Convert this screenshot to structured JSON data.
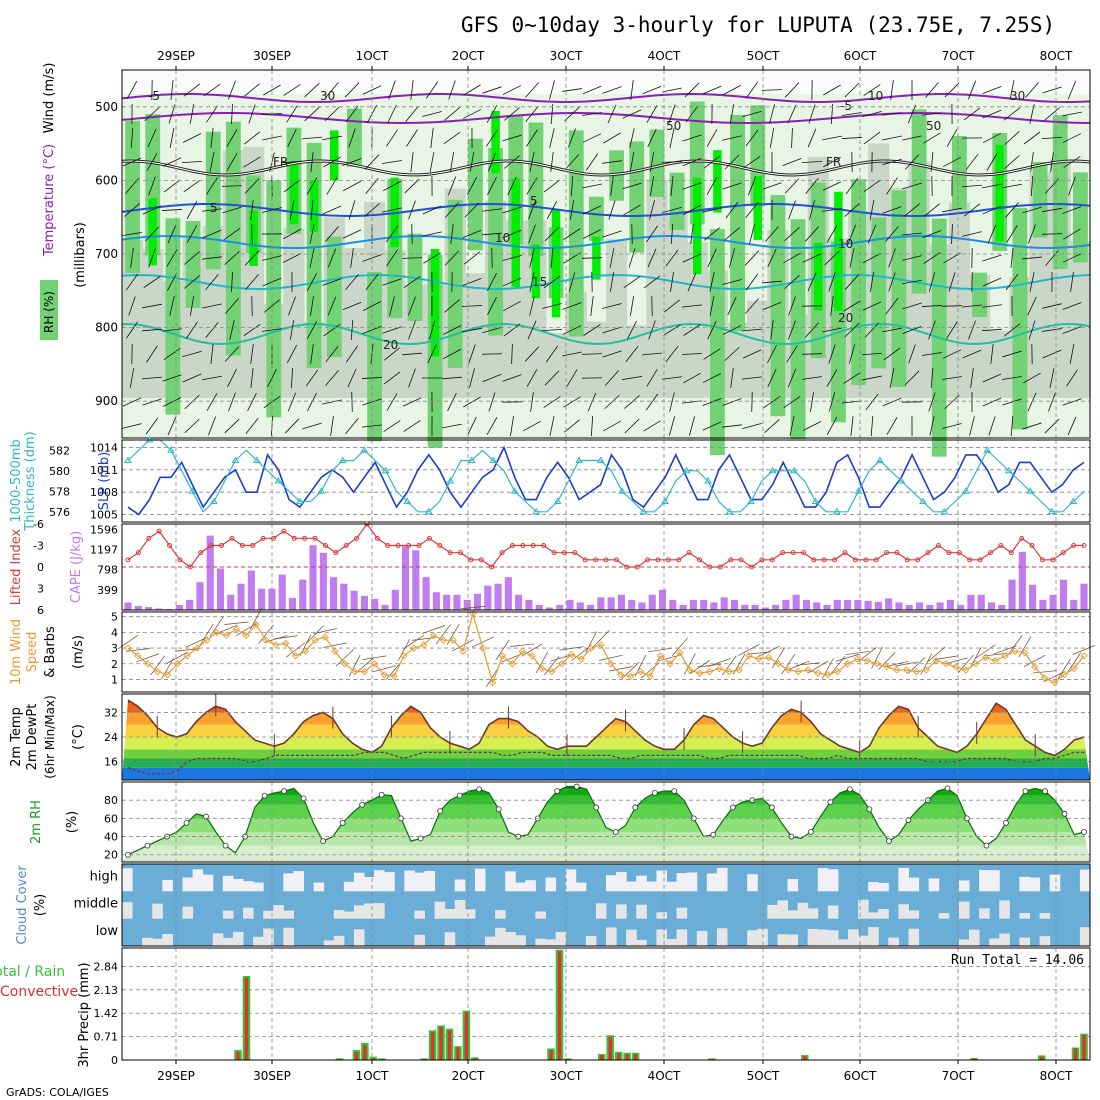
{
  "title": "GFS 0~10day 3-hourly for LUPUTA (23.75E, 7.25S)",
  "footer": "GrADS: COLA/IGES",
  "dates": [
    "29SEP",
    "30SEP",
    "1OCT",
    "2OCT",
    "3OCT",
    "4OCT",
    "5OCT",
    "6OCT",
    "7OCT",
    "8OCT"
  ],
  "colors": {
    "rh_light": "#e8f4e4",
    "rh_mid": "#c9d6c8",
    "rh_green": "#73d273",
    "rh_bright": "#00ee00",
    "rh_dark": "#2eb82e",
    "freezing": "#222222",
    "temp_neg": "#8a1fb5",
    "temp_5": "#1e50d8",
    "temp_10": "#1e90e0",
    "temp_15": "#20b8c8",
    "temp_20": "#20c0a0",
    "warm": "#e8a030",
    "slp": "#1a3ccf",
    "thickness": "#30b8c8",
    "lifted": "#d83c3c",
    "cape": "#c07cf0",
    "wind10": "#e89c30",
    "precip_total": "#38c038",
    "precip_conv": "#e03030",
    "cloud": "#6aaed8",
    "cloud_gap": "#e6e6e6"
  },
  "chart_data": [
    {
      "type": "heatmap",
      "name": "upper-air",
      "ylabel": "(millibars)",
      "legend": [
        "RH (%)",
        "Temperature (°C)",
        "Wind (m/s)"
      ],
      "y_ticks": [
        500,
        600,
        700,
        800,
        900
      ],
      "ylim": [
        950,
        450
      ],
      "contour_labels": [
        "-5",
        "-5",
        "FR",
        "FR",
        "5",
        "5",
        "10",
        "10",
        "15",
        "20",
        "20",
        "30",
        "30",
        "50",
        "50",
        "10"
      ]
    },
    {
      "type": "line",
      "name": "thickness-slp",
      "ylabel_left": "1000-500mb Thickness (dm)",
      "ylabel_right": "SLP (mb)",
      "left_ticks": [
        576,
        578,
        580,
        582
      ],
      "right_ticks": [
        1005,
        1008,
        1011,
        1014
      ],
      "left_lim": [
        575,
        583
      ],
      "right_lim": [
        1004,
        1015
      ],
      "series": [
        {
          "name": "SLP",
          "values": [
            1006,
            1005,
            1007,
            1010,
            1010,
            1012,
            1009,
            1006,
            1008,
            1010,
            1011,
            1008,
            1008,
            1013,
            1011,
            1007,
            1006,
            1008,
            1010,
            1011,
            1010,
            1008,
            1010,
            1012,
            1009,
            1006,
            1008,
            1011,
            1013,
            1011,
            1008,
            1006,
            1008,
            1010,
            1011,
            1014,
            1010,
            1007,
            1007,
            1010,
            1012,
            1010,
            1007,
            1008,
            1009,
            1013,
            1011,
            1007,
            1006,
            1008,
            1010,
            1013,
            1010,
            1007,
            1007,
            1011,
            1013,
            1010,
            1007,
            1007,
            1009,
            1012,
            1009,
            1006,
            1006,
            1008,
            1012,
            1013,
            1010,
            1006,
            1006,
            1008,
            1010,
            1013,
            1010,
            1007,
            1008,
            1010,
            1013,
            1013,
            1011,
            1008,
            1009,
            1012,
            1012,
            1010,
            1008,
            1009,
            1011,
            1012
          ]
        },
        {
          "name": "Thickness",
          "values": [
            581,
            582,
            583,
            583,
            582,
            580,
            578,
            576,
            577,
            579,
            581,
            582,
            581,
            580,
            579,
            578,
            577,
            577,
            578,
            580,
            581,
            581,
            582,
            581,
            580,
            578,
            577,
            576,
            576,
            577,
            579,
            581,
            581,
            582,
            581,
            580,
            578,
            577,
            576,
            576,
            577,
            579,
            581,
            581,
            581,
            580,
            578,
            577,
            576,
            576,
            577,
            579,
            580,
            580,
            579,
            577,
            576,
            576,
            577,
            579,
            580,
            580,
            580,
            579,
            577,
            576,
            576,
            576,
            578,
            580,
            581,
            580,
            579,
            578,
            577,
            576,
            576,
            577,
            578,
            580,
            582,
            581,
            580,
            579,
            578,
            577,
            576,
            576,
            577,
            578
          ]
        }
      ]
    },
    {
      "type": "bar",
      "name": "lifted-cape",
      "ylabel_left": "Lifted Index",
      "ylabel_right": "CAPE (J/kg)",
      "left_ticks": [
        -6,
        -3,
        0,
        3,
        6
      ],
      "left_tick_labels": [
        "6",
        "3",
        "0",
        "-3",
        "-6"
      ],
      "right_ticks": [
        399,
        798,
        1197,
        1596
      ],
      "cape": [
        150,
        80,
        60,
        30,
        20,
        100,
        200,
        550,
        1470,
        820,
        300,
        520,
        780,
        420,
        420,
        700,
        240,
        600,
        1280,
        1130,
        650,
        520,
        380,
        280,
        220,
        100,
        400,
        1260,
        1180,
        650,
        350,
        300,
        300,
        200,
        320,
        480,
        520,
        650,
        300,
        200,
        100,
        50,
        100,
        200,
        150,
        100,
        250,
        250,
        300,
        200,
        150,
        300,
        400,
        200,
        100,
        200,
        200,
        150,
        250,
        200,
        100,
        100,
        50,
        100,
        200,
        300,
        200,
        150,
        100,
        200,
        200,
        200,
        180,
        160,
        230,
        150,
        100,
        150,
        100,
        150,
        200,
        100,
        300,
        300,
        150,
        100,
        600,
        1150,
        500,
        200,
        300,
        600,
        200,
        520
      ],
      "lifted_index": [
        -1,
        -2,
        -4,
        -5,
        -3,
        -1,
        0,
        -2,
        -3,
        -3,
        -4,
        -3,
        -3,
        -4,
        -4,
        -5,
        -4,
        -4,
        -4,
        -3,
        -2,
        -3,
        -4,
        -6,
        -4,
        -3,
        -3,
        -3,
        -3,
        -4,
        -3,
        -2,
        -2,
        -1,
        -1,
        0,
        -2,
        -3,
        -3,
        -3,
        -3,
        -2,
        -2,
        -2,
        -1,
        -1,
        -1,
        -1,
        0,
        0,
        -1,
        -1,
        -1,
        -1,
        -2,
        -1,
        0,
        0,
        -1,
        -1,
        0,
        -1,
        -1,
        -2,
        -2,
        -2,
        -1,
        -1,
        -1,
        -2,
        -1,
        -1,
        -1,
        -2,
        -2,
        -1,
        -1,
        -2,
        -3,
        -2,
        -2,
        -1,
        -1,
        -2,
        -3,
        -2,
        -4,
        -3,
        -1,
        -1,
        -2,
        -3,
        -3
      ]
    },
    {
      "type": "line",
      "name": "wind10m",
      "ylabel": "10m Wind Speed & Barbs (m/s)",
      "y_ticks": [
        1,
        2,
        3,
        4,
        5
      ],
      "ylim": [
        0.2,
        5.3
      ],
      "values": [
        3,
        2.5,
        2,
        1.5,
        1.3,
        2,
        2.5,
        3,
        3.5,
        4,
        3.8,
        4.2,
        3.8,
        4.5,
        3.5,
        3.2,
        3.3,
        2.5,
        2.8,
        3.5,
        3.7,
        2.8,
        2,
        1.5,
        1.5,
        2,
        1.3,
        1.2,
        2.5,
        3,
        3.2,
        3.8,
        3.5,
        3.5,
        2.8,
        5.2,
        3,
        0.8,
        2.5,
        2,
        2.8,
        2.5,
        1.7,
        1.5,
        2,
        2.6,
        2.3,
        3,
        3.2,
        2,
        1.3,
        1.2,
        1.5,
        1.2,
        2.5,
        2,
        2.7,
        1.6,
        1.4,
        1.5,
        1.7,
        1.5,
        1.6,
        2.5,
        2.3,
        2.4,
        2,
        1.6,
        1.5,
        1.6,
        1.4,
        1.3,
        1.5,
        2,
        2.3,
        2.2,
        2,
        1.8,
        1.6,
        1.6,
        1.5,
        1.6,
        2.2,
        2,
        1.8,
        1.6,
        2,
        2.4,
        2.2,
        2.5,
        2.8,
        2.7,
        1.8,
        1.1,
        0.8,
        1.3,
        1.7,
        2.5
      ]
    },
    {
      "type": "area",
      "name": "temperature",
      "ylabel": "2m Temp 2m DewPt (6hr Min/Max) (°C)",
      "y_ticks": [
        16,
        24,
        32
      ],
      "ylim": [
        10,
        38
      ],
      "temp": [
        36,
        34,
        31,
        27,
        25,
        24,
        25,
        29,
        32,
        34,
        33,
        29,
        26,
        23,
        22,
        21,
        22,
        25,
        29,
        31,
        32,
        30,
        25,
        22,
        20,
        19,
        21,
        27,
        31,
        34,
        32,
        27,
        24,
        22,
        21,
        20,
        22,
        28,
        30,
        30,
        29,
        26,
        24,
        21,
        20,
        21,
        21,
        21,
        24,
        27,
        30,
        29,
        26,
        23,
        21,
        20,
        20,
        23,
        28,
        31,
        30,
        27,
        24,
        22,
        21,
        22,
        27,
        31,
        33,
        32,
        29,
        25,
        23,
        21,
        20,
        19,
        21,
        27,
        31,
        34,
        33,
        27,
        24,
        21,
        20,
        19,
        21,
        25,
        30,
        35,
        33,
        28,
        23,
        21,
        19,
        18,
        20,
        23,
        24
      ],
      "dewpoint": [
        14,
        13,
        12,
        12,
        12,
        13,
        16,
        17,
        17,
        17,
        17,
        17,
        16,
        16,
        17,
        18,
        18,
        18,
        18,
        18,
        18,
        18,
        18,
        18,
        19,
        19,
        19,
        18,
        17,
        18,
        19,
        19,
        19,
        19,
        19,
        19,
        19,
        19,
        18,
        18,
        19,
        19,
        19,
        18,
        18,
        18,
        18,
        18,
        18,
        18,
        17,
        17,
        18,
        18,
        18,
        18,
        18,
        18,
        18,
        17,
        17,
        18,
        18,
        18,
        18,
        18,
        18,
        18,
        18,
        17,
        17,
        17,
        18,
        17,
        17,
        17,
        17,
        17,
        17,
        17,
        17,
        16,
        16,
        16,
        16,
        17,
        17,
        17,
        17,
        17,
        16,
        16,
        16,
        17,
        17,
        18,
        19,
        19
      ]
    },
    {
      "type": "area",
      "name": "relative-humidity",
      "ylabel": "2m RH (%)",
      "y_ticks": [
        20,
        40,
        60,
        80
      ],
      "ylim": [
        12,
        100
      ],
      "values": [
        20,
        25,
        30,
        35,
        40,
        45,
        55,
        65,
        62,
        45,
        30,
        22,
        40,
        72,
        85,
        88,
        90,
        93,
        82,
        55,
        35,
        40,
        55,
        66,
        75,
        80,
        86,
        85,
        60,
        35,
        38,
        42,
        68,
        80,
        85,
        90,
        92,
        88,
        70,
        45,
        40,
        42,
        60,
        78,
        90,
        95,
        95,
        92,
        72,
        50,
        45,
        52,
        72,
        82,
        88,
        90,
        90,
        80,
        60,
        40,
        42,
        58,
        72,
        78,
        80,
        82,
        72,
        55,
        40,
        38,
        45,
        62,
        78,
        88,
        92,
        86,
        70,
        50,
        35,
        42,
        58,
        70,
        80,
        90,
        93,
        85,
        60,
        40,
        30,
        38,
        55,
        75,
        90,
        93,
        90,
        80,
        65,
        42,
        45
      ]
    },
    {
      "type": "table",
      "name": "cloud-cover",
      "ylabel": "Cloud Cover (%)",
      "row_labels": [
        "high",
        "middle",
        "low"
      ]
    },
    {
      "type": "bar",
      "name": "precipitation",
      "ylabel": "3hr Precip (mm)",
      "ylabel2": "Total / Rain Convective",
      "legend": [
        "Total / Rain",
        "Convective"
      ],
      "y_ticks": [
        0,
        0.71,
        1.42,
        2.13,
        2.84
      ],
      "ylim": [
        0,
        3.4
      ],
      "annotation": "Run Total = 14.06",
      "total": [
        0,
        0,
        0,
        0,
        0,
        0,
        0,
        0,
        0,
        0,
        0,
        0,
        0,
        0.3,
        2.55,
        0,
        0,
        0,
        0,
        0,
        0,
        0,
        0,
        0,
        0,
        0.05,
        0,
        0.3,
        0.52,
        0.1,
        0.05,
        0,
        0,
        0,
        0,
        0.05,
        0.9,
        1.05,
        0.95,
        0.42,
        1.5,
        0.08,
        0,
        0,
        0,
        0,
        0,
        0,
        0,
        0,
        0.35,
        3.35,
        0.05,
        0,
        0,
        0,
        0.18,
        0.75,
        0.25,
        0.22,
        0.22,
        0,
        0,
        0,
        0,
        0,
        0,
        0,
        0,
        0.05,
        0,
        0,
        0,
        0,
        0,
        0,
        0,
        0,
        0,
        0,
        0.15,
        0,
        0,
        0,
        0,
        0,
        0,
        0,
        0,
        0,
        0,
        0,
        0,
        0,
        0,
        0,
        0,
        0,
        0,
        0,
        0.06,
        0,
        0,
        0,
        0,
        0,
        0,
        0,
        0.14,
        0,
        0,
        0,
        0.38,
        0.8
      ],
      "convective": [
        0,
        0,
        0,
        0,
        0,
        0,
        0,
        0,
        0,
        0,
        0,
        0,
        0,
        0.25,
        2.5,
        0,
        0,
        0,
        0,
        0,
        0,
        0,
        0,
        0,
        0,
        0.03,
        0,
        0.25,
        0.45,
        0.05,
        0.02,
        0,
        0,
        0,
        0,
        0.03,
        0.85,
        1,
        0.9,
        0.38,
        1.45,
        0.05,
        0,
        0,
        0,
        0,
        0,
        0,
        0,
        0,
        0.3,
        3.3,
        0.03,
        0,
        0,
        0,
        0.15,
        0.7,
        0.2,
        0.18,
        0.18,
        0,
        0,
        0,
        0,
        0,
        0,
        0,
        0,
        0.03,
        0,
        0,
        0,
        0,
        0,
        0,
        0,
        0,
        0,
        0,
        0.12,
        0,
        0,
        0,
        0,
        0,
        0,
        0,
        0,
        0,
        0,
        0,
        0,
        0,
        0,
        0,
        0,
        0,
        0,
        0,
        0.04,
        0,
        0,
        0,
        0,
        0,
        0,
        0,
        0.1,
        0,
        0,
        0,
        0.35,
        0.76
      ]
    }
  ]
}
